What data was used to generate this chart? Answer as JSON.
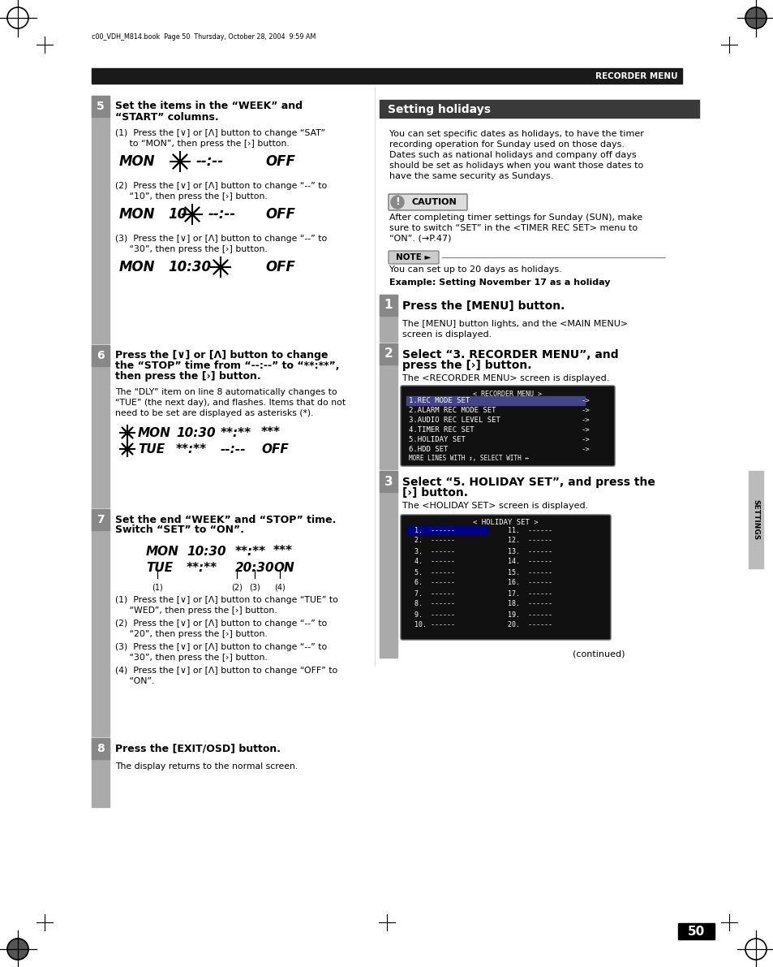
{
  "page_num": "50",
  "header_text": "RECORDER MENU",
  "file_info": "c00_VDH_M814.book  Page 50  Thursday, October 28, 2004  9:59 AM",
  "bg_color": "#ffffff",
  "header_bar_color": "#1a1a1a",
  "header_text_color": "#ffffff",
  "step_bar_color": "#999999",
  "right_header_bg": "#3a3a3a",
  "right_header_text": "#ffffff",
  "section_left": {
    "step5_title_1": "Set the items in the “WEEK” and",
    "step5_title_2": "“START” columns.",
    "step5_s1_1": "(1)  Press the [∨] or [Λ] button to change “SAT”",
    "step5_s1_2": "     to “MON”, then press the [›] button.",
    "step5_s2_1": "(2)  Press the [∨] or [Λ] button to change “--” to",
    "step5_s2_2": "     “10”, then press the [›] button.",
    "step5_s3_1": "(3)  Press the [∨] or [Λ] button to change “--” to",
    "step5_s3_2": "     “30”, then press the [›] button.",
    "step6_title_1": "Press the [∨] or [Λ] button to change",
    "step6_title_2": "the “STOP” time from “--:--” to “**:**”,",
    "step6_title_3": "then press the [›] button.",
    "step6_s1": "The “DLY” item on line 8 automatically changes to",
    "step6_s2": "“TUE” (the next day), and flashes. Items that do not",
    "step6_s3": "need to be set are displayed as asterisks (*).",
    "step7_title_1": "Set the end “WEEK” and “STOP” time.",
    "step7_title_2": "Switch “SET” to “ON”.",
    "step7_s1_1": "(1)  Press the [∨] or [Λ] button to change “TUE” to",
    "step7_s1_2": "     “WED”, then press the [›] button.",
    "step7_s2_1": "(2)  Press the [∨] or [Λ] button to change “--” to",
    "step7_s2_2": "     “20”, then press the [›] button.",
    "step7_s3_1": "(3)  Press the [∨] or [Λ] button to change “--” to",
    "step7_s3_2": "     “30”, then press the [›] button.",
    "step7_s4_1": "(4)  Press the [∨] or [Λ] button to change “OFF” to",
    "step7_s4_2": "     “ON”.",
    "step8_title": "Press the [EXIT/OSD] button.",
    "step8_sub": "The display returns to the normal screen."
  },
  "section_right": {
    "title": "Setting holidays",
    "intro_1": "You can set specific dates as holidays, to have the timer",
    "intro_2": "recording operation for Sunday used on those days.",
    "intro_3": "Dates such as national holidays and company off days",
    "intro_4": "should be set as holidays when you want those dates to",
    "intro_5": "have the same security as Sundays.",
    "caution_text_1": "After completing timer settings for Sunday (SUN), make",
    "caution_text_2": "sure to switch “SET” in the <TIMER REC SET> menu to",
    "caution_text_3": "“ON”. (→P.47)",
    "note_text": "You can set up to 20 days as holidays.",
    "example_text": "Example: Setting November 17 as a holiday",
    "step1_title": "Press the [MENU] button.",
    "step1_sub_1": "The [MENU] button lights, and the <MAIN MENU>",
    "step1_sub_2": "screen is displayed.",
    "step2_title_1": "Select “3. RECORDER MENU”, and",
    "step2_title_2": "press the [›] button.",
    "step2_sub": "The <RECORDER MENU> screen is displayed.",
    "menu_items": [
      "1.REC MODE SET",
      "2.ALARM REC MODE SET",
      "3.AUDIO REC LEVEL SET",
      "4.TIMER REC SET",
      "5.HOLIDAY SET",
      "6.HDD SET"
    ],
    "menu_footer": "MORE LINES WITH ↕, SELECT WITH ↔",
    "step3_title_1": "Select “5. HOLIDAY SET”, and press the",
    "step3_title_2": "[›] button.",
    "step3_sub": "The <HOLIDAY SET> screen is displayed.",
    "holiday_rows": [
      [
        "1.  ------",
        "11.  ------"
      ],
      [
        "2.  ------",
        "12.  ------"
      ],
      [
        "3.  ------",
        "13.  ------"
      ],
      [
        "4.  ------",
        "14.  ------"
      ],
      [
        "5.  ------",
        "15.  ------"
      ],
      [
        "6.  ------",
        "16.  ------"
      ],
      [
        "7.  ------",
        "17.  ------"
      ],
      [
        "8.  ------",
        "18.  ------"
      ],
      [
        "9.  ------",
        "19.  ------"
      ],
      [
        "10. ------",
        "20.  ------"
      ]
    ],
    "continued": "(continued)"
  }
}
